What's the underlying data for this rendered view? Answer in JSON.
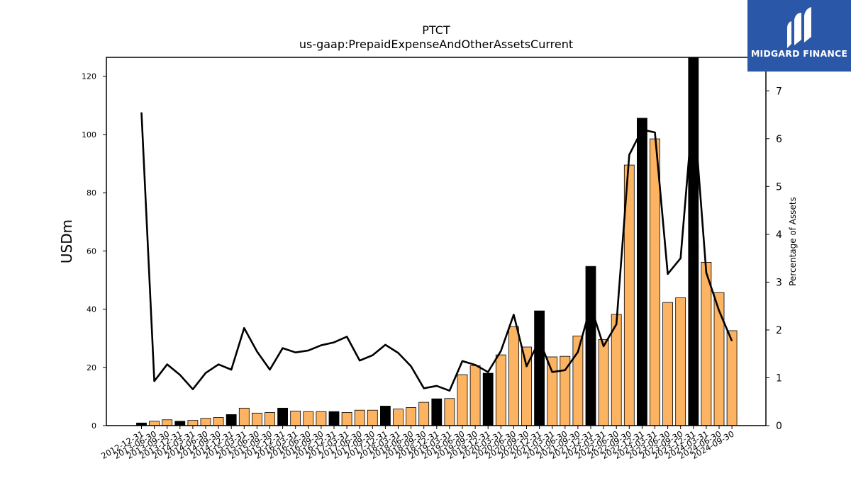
{
  "logo": {
    "text": "MIDGARD FINANCE"
  },
  "colors": {
    "regular_bar": "#fdb462",
    "highlight_bar": "#000000",
    "line": "#000000",
    "logo_bg": "#2a57a8"
  },
  "chart_data": {
    "type": "bar",
    "title": "PTCT",
    "subtitle": "us-gaap:PrepaidExpenseAndOtherAssetsCurrent",
    "ylabel": "USDm",
    "y2label": "Percentage of Assets",
    "ylim": [
      0,
      126.5
    ],
    "y2lim": [
      0,
      7.7
    ],
    "yticks": [
      0,
      20,
      40,
      60,
      80,
      100,
      120
    ],
    "y2ticks": [
      0,
      1,
      2,
      3,
      4,
      5,
      6,
      7
    ],
    "x_tick_labels": [
      "2012-12-31",
      "2013-06-30",
      "2013-09-30",
      "2013-12-31",
      "2014-03-31",
      "2014-06-30",
      "2014-09-30",
      "2014-12-31",
      "2015-03-31",
      "2015-06-30",
      "2015-09-30",
      "2015-12-31",
      "2016-03-31",
      "2016-06-30",
      "2016-09-30",
      "2016-12-31",
      "2017-03-31",
      "2017-06-30",
      "2017-09-30",
      "2017-12-31",
      "2018-03-31",
      "2018-06-30",
      "2018-09-30",
      "2018-12-31",
      "2019-03-31",
      "2019-06-30",
      "2019-09-30",
      "2019-12-31",
      "2020-03-31",
      "2020-06-30",
      "2020-09-30",
      "2020-12-31",
      "2021-03-31",
      "2021-06-30",
      "2021-09-30",
      "2021-12-31",
      "2022-03-31",
      "2022-06-30",
      "2022-09-30",
      "2022-12-31",
      "2023-03-31",
      "2023-06-30",
      "2023-09-30",
      "2023-12-31",
      "2024-03-31",
      "2024-06-30",
      "2024-09-30"
    ],
    "bar_values": [
      0.9,
      1.5,
      2.0,
      1.5,
      1.8,
      2.5,
      2.8,
      3.8,
      6.0,
      4.3,
      4.5,
      6.0,
      5.0,
      4.8,
      4.8,
      4.8,
      4.5,
      5.3,
      5.3,
      6.7,
      5.7,
      6.2,
      8.0,
      9.2,
      9.3,
      17.5,
      20.6,
      18.0,
      24.3,
      34.0,
      27.0,
      39.4,
      23.6,
      23.8,
      30.8,
      54.7,
      29.6,
      38.2,
      89.5,
      105.6,
      98.5,
      42.3,
      43.9,
      126.5,
      56.1,
      45.7,
      32.6
    ],
    "bar_highlight": [
      true,
      false,
      false,
      true,
      false,
      false,
      false,
      true,
      false,
      false,
      false,
      true,
      false,
      false,
      false,
      true,
      false,
      false,
      false,
      true,
      false,
      false,
      false,
      true,
      false,
      false,
      false,
      true,
      false,
      false,
      false,
      true,
      false,
      false,
      false,
      true,
      false,
      false,
      false,
      true,
      false,
      false,
      false,
      true,
      false,
      false,
      false
    ],
    "line_values": [
      6.55,
      0.93,
      1.28,
      1.06,
      0.76,
      1.1,
      1.28,
      1.17,
      2.04,
      1.55,
      1.17,
      1.62,
      1.53,
      1.57,
      1.68,
      1.74,
      1.86,
      1.36,
      1.47,
      1.69,
      1.52,
      1.24,
      0.78,
      0.83,
      0.73,
      1.35,
      1.27,
      1.12,
      1.56,
      2.32,
      1.24,
      1.78,
      1.12,
      1.16,
      1.54,
      2.5,
      1.66,
      2.12,
      5.66,
      6.19,
      6.13,
      3.17,
      3.5,
      6.72,
      3.2,
      2.4,
      1.77
    ]
  }
}
